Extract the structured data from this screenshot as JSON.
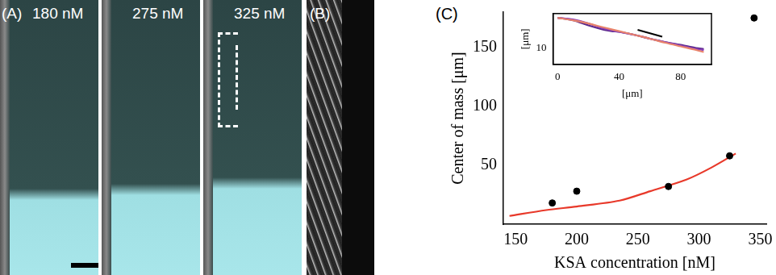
{
  "panels": {
    "A": {
      "label": "(A)",
      "images": [
        "180 nM",
        "275 nM",
        "325 nM"
      ]
    },
    "B": {
      "label": "(B)"
    },
    "C": {
      "label": "(C)"
    }
  },
  "chart_data": [
    {
      "type": "scatter",
      "x_label": "KSA concentration [nM]",
      "y_label": "Center of mass [μm]",
      "xlim": [
        140,
        355
      ],
      "xticks": [
        150,
        200,
        250,
        300,
        350
      ],
      "ylim": [
        0,
        180
      ],
      "yticks": [
        50,
        100,
        150
      ],
      "grid": false,
      "series": [
        {
          "type": "scatter",
          "color": "#000000",
          "marker": "circle",
          "x": [
            180,
            200,
            275,
            325,
            345
          ],
          "values": [
            18,
            28,
            32,
            58,
            175
          ]
        },
        {
          "type": "line",
          "color": "#e8392a",
          "line_style": "solid",
          "x": [
            145,
            175,
            200,
            235,
            260,
            290,
            310,
            330
          ],
          "values": [
            7,
            12,
            15,
            20,
            28,
            38,
            48,
            60
          ]
        }
      ]
    },
    {
      "type": "line",
      "log": "y",
      "x_label": "[μm]",
      "y_label": "[μm]",
      "xlim": [
        -3,
        100
      ],
      "xticks": [
        0,
        40,
        80
      ],
      "ylim": [
        4,
        70
      ],
      "yticks": [
        10
      ],
      "grid": false,
      "series": [
        {
          "type": "line",
          "color": "#e8836b",
          "line_style": "solid",
          "x": [
            0,
            10,
            20,
            30,
            40,
            50,
            60,
            70,
            80,
            90,
            95
          ],
          "values": [
            55,
            48,
            40,
            32,
            26,
            21,
            17,
            13.5,
            11,
            9,
            8
          ]
        },
        {
          "type": "line",
          "color": "#8a3fb8",
          "line_style": "solid",
          "x": [
            0,
            10,
            20,
            30,
            40,
            50,
            60,
            70,
            80,
            90,
            95
          ],
          "values": [
            55,
            50,
            40,
            30,
            25,
            21,
            17,
            14,
            11.5,
            9.5,
            9
          ]
        },
        {
          "type": "line",
          "color": "#5a2a8a",
          "line_style": "solid",
          "x": [
            0,
            10,
            20,
            30,
            35,
            40,
            50,
            60,
            70,
            80,
            90,
            95
          ],
          "values": [
            55,
            48,
            36,
            28,
            26,
            25,
            21,
            17,
            14,
            12,
            10,
            9.5
          ]
        },
        {
          "type": "line",
          "color": "#000000",
          "line_style": "solid",
          "x": [
            52,
            68
          ],
          "values": [
            28,
            19
          ]
        }
      ]
    }
  ]
}
